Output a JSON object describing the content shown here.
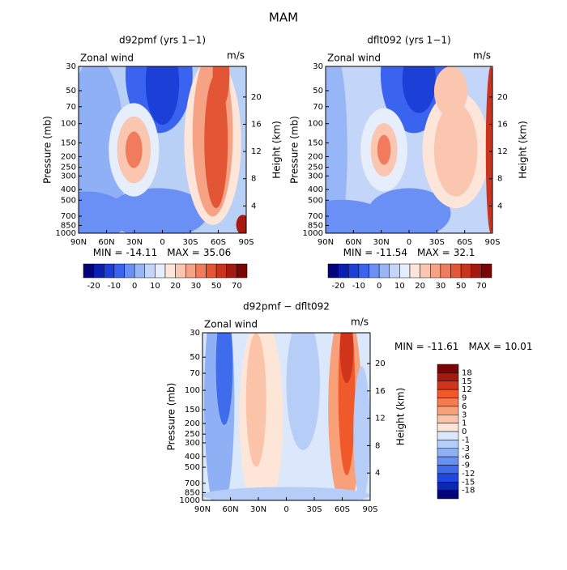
{
  "title": "MAM",
  "chart_data": [
    {
      "type": "contour",
      "title": "d92pmf (yrs 1−1)",
      "subtitle": "Zonal wind",
      "units": "m/s",
      "ylabel": "Pressure (mb)",
      "y2label": "Height (km)",
      "xlim": [
        90,
        -90
      ],
      "xticks": [
        {
          "value": 90,
          "label": "90N"
        },
        {
          "value": 60,
          "label": "60N"
        },
        {
          "value": 30,
          "label": "30N"
        },
        0,
        {
          "value": -30,
          "label": "30S"
        },
        {
          "value": -60,
          "label": "60S"
        },
        {
          "value": -90,
          "label": "90S"
        }
      ],
      "ylim": [
        1000,
        30
      ],
      "log_y": true,
      "yticks": [
        30,
        50,
        70,
        100,
        150,
        200,
        250,
        300,
        400,
        500,
        700,
        850,
        1000
      ],
      "y2lim": [
        0,
        24.5
      ],
      "y2ticks": [
        4,
        8,
        12,
        16,
        20
      ],
      "min_label": "MIN =",
      "min": -14.11,
      "max_label": "MAX =",
      "max": 35.06,
      "colorbar": {
        "orientation": "horizontal",
        "labels": [
          -20,
          -10,
          0,
          10,
          20,
          30,
          50,
          70
        ],
        "colors": [
          "#03037a",
          "#0a1fb0",
          "#1c3fd8",
          "#3a63f0",
          "#6a90f5",
          "#97b6f8",
          "#c3d6fa",
          "#e6eefc",
          "#fde5da",
          "#fbc6b0",
          "#f6a285",
          "#f07c5d",
          "#e25636",
          "#c8341e",
          "#a51a10",
          "#7a0505"
        ]
      }
    },
    {
      "type": "contour",
      "title": "dflt092 (yrs 1−1)",
      "subtitle": "Zonal wind",
      "units": "m/s",
      "ylabel": "Pressure (mb)",
      "y2label": "Height (km)",
      "xlim": [
        90,
        -90
      ],
      "xticks": [
        {
          "value": 90,
          "label": "90N"
        },
        {
          "value": 60,
          "label": "60N"
        },
        {
          "value": 30,
          "label": "30N"
        },
        0,
        {
          "value": -30,
          "label": "30S"
        },
        {
          "value": -60,
          "label": "60S"
        },
        {
          "value": -90,
          "label": "90S"
        }
      ],
      "ylim": [
        1000,
        30
      ],
      "log_y": true,
      "yticks": [
        30,
        50,
        70,
        100,
        150,
        200,
        250,
        300,
        400,
        500,
        700,
        850,
        1000
      ],
      "y2lim": [
        0,
        24.5
      ],
      "y2ticks": [
        4,
        8,
        12,
        16,
        20
      ],
      "min_label": "MIN =",
      "min": -11.54,
      "max_label": "MAX =",
      "max": 32.1,
      "colorbar": {
        "orientation": "horizontal",
        "labels": [
          -20,
          -10,
          0,
          10,
          20,
          30,
          50,
          70
        ],
        "colors": [
          "#03037a",
          "#0a1fb0",
          "#1c3fd8",
          "#3a63f0",
          "#6a90f5",
          "#97b6f8",
          "#c3d6fa",
          "#e6eefc",
          "#fde5da",
          "#fbc6b0",
          "#f6a285",
          "#f07c5d",
          "#e25636",
          "#c8341e",
          "#a51a10",
          "#7a0505"
        ]
      }
    },
    {
      "type": "contour",
      "title": "d92pmf − dflt092",
      "subtitle": "Zonal wind",
      "units": "m/s",
      "ylabel": "Pressure (mb)",
      "y2label": "Height (km)",
      "xlim": [
        90,
        -90
      ],
      "xticks": [
        {
          "value": 90,
          "label": "90N"
        },
        {
          "value": 60,
          "label": "60N"
        },
        {
          "value": 30,
          "label": "30N"
        },
        0,
        {
          "value": -30,
          "label": "30S"
        },
        {
          "value": -60,
          "label": "60S"
        },
        {
          "value": -90,
          "label": "90S"
        }
      ],
      "ylim": [
        1000,
        30
      ],
      "log_y": true,
      "yticks": [
        30,
        50,
        70,
        100,
        150,
        200,
        250,
        300,
        400,
        500,
        700,
        850,
        1000
      ],
      "y2lim": [
        0,
        24.5
      ],
      "y2ticks": [
        4,
        8,
        12,
        16,
        20
      ],
      "min_label": "MIN =",
      "min": -11.61,
      "max_label": "MAX =",
      "max": 10.01,
      "colorbar": {
        "orientation": "vertical",
        "labels": [
          18,
          15,
          12,
          9,
          6,
          3,
          1,
          0,
          -1,
          -3,
          -6,
          -9,
          -12,
          -15,
          -18
        ],
        "colors": [
          "#7a0505",
          "#a51a10",
          "#d0341a",
          "#f05a2a",
          "#f57c50",
          "#f7a07a",
          "#fbc4a8",
          "#fde6d8",
          "#dbe8fb",
          "#b6cdf8",
          "#8fb0f5",
          "#6690f2",
          "#3e6cec",
          "#2048dc",
          "#0d28b0",
          "#03037a"
        ]
      }
    }
  ]
}
